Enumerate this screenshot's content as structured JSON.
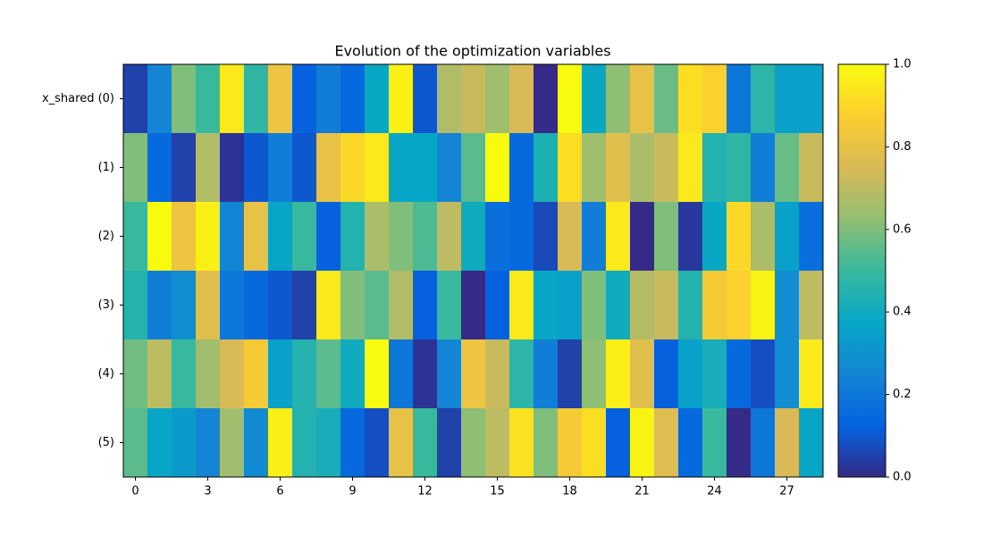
{
  "chart_data": {
    "type": "heatmap",
    "title": "Evolution of the optimization variables",
    "rows": [
      "x_shared (0)",
      "(1)",
      "(2)",
      "(3)",
      "(4)",
      "(5)"
    ],
    "z": [
      [
        0.05,
        0.25,
        0.6,
        0.5,
        0.95,
        0.48,
        0.82,
        0.12,
        0.22,
        0.15,
        0.38,
        0.97,
        0.1,
        0.68,
        0.72,
        0.65,
        0.75,
        0.0,
        1.0,
        0.38,
        0.62,
        0.8,
        0.57,
        0.92,
        0.88,
        0.2,
        0.47,
        0.35,
        0.35
      ],
      [
        0.6,
        0.15,
        0.05,
        0.68,
        0.02,
        0.1,
        0.22,
        0.1,
        0.8,
        0.9,
        0.95,
        0.37,
        0.37,
        0.25,
        0.55,
        1.0,
        0.15,
        0.43,
        0.92,
        0.65,
        0.78,
        0.67,
        0.72,
        0.95,
        0.45,
        0.48,
        0.22,
        0.57,
        0.72
      ],
      [
        0.5,
        1.0,
        0.82,
        0.97,
        0.25,
        0.8,
        0.37,
        0.5,
        0.12,
        0.45,
        0.67,
        0.6,
        0.53,
        0.7,
        0.4,
        0.17,
        0.15,
        0.07,
        0.75,
        0.22,
        0.95,
        0.0,
        0.6,
        0.03,
        0.38,
        0.9,
        0.67,
        0.35,
        0.17
      ],
      [
        0.45,
        0.22,
        0.28,
        0.78,
        0.2,
        0.15,
        0.1,
        0.05,
        0.95,
        0.6,
        0.55,
        0.68,
        0.12,
        0.5,
        0.0,
        0.12,
        0.95,
        0.38,
        0.35,
        0.6,
        0.4,
        0.68,
        0.72,
        0.45,
        0.85,
        0.88,
        0.98,
        0.28,
        0.7
      ],
      [
        0.58,
        0.7,
        0.5,
        0.65,
        0.75,
        0.85,
        0.35,
        0.45,
        0.55,
        0.4,
        1.0,
        0.2,
        0.02,
        0.25,
        0.82,
        0.72,
        0.47,
        0.22,
        0.05,
        0.62,
        0.97,
        0.78,
        0.12,
        0.35,
        0.42,
        0.15,
        0.08,
        0.28,
        0.95
      ],
      [
        0.55,
        0.37,
        0.33,
        0.25,
        0.65,
        0.27,
        0.97,
        0.45,
        0.42,
        0.15,
        0.08,
        0.8,
        0.5,
        0.05,
        0.62,
        0.7,
        0.93,
        0.6,
        0.85,
        0.92,
        0.12,
        0.98,
        0.77,
        0.15,
        0.5,
        0.0,
        0.2,
        0.75,
        0.37
      ]
    ],
    "xlim": [
      -0.5,
      28.5
    ],
    "xticks": [
      0,
      3,
      6,
      9,
      12,
      15,
      18,
      21,
      24,
      27
    ],
    "colormap": "parula",
    "clim": [
      0,
      1
    ],
    "cticks": [
      0.0,
      0.2,
      0.4,
      0.6,
      0.8,
      1.0
    ]
  }
}
